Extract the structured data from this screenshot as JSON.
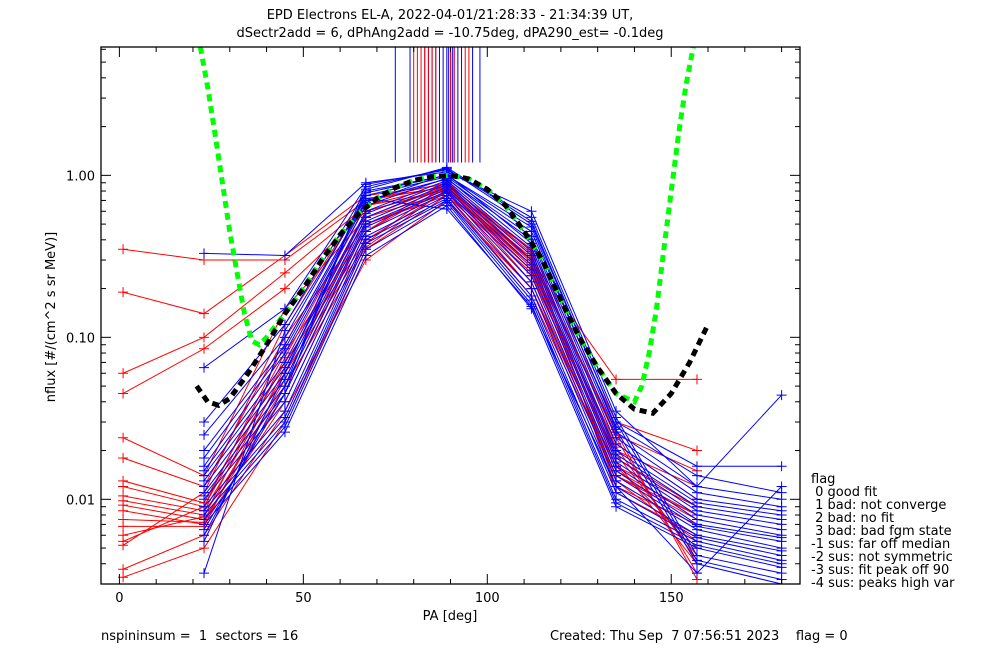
{
  "chart_data": {
    "type": "line",
    "title": [
      "EPD Electrons EL-A, 2022-04-01/21:28:33 - 21:34:39 UT,",
      "dSectr2add = 6, dPhAng2add = -10.75deg, dPA290_est=  -0.1deg"
    ],
    "xlabel": "PA [deg]",
    "ylabel": "nflux [#/(cm^2 s sr MeV)]",
    "xlim": [
      -5,
      185
    ],
    "ylim": [
      0.003,
      6.2
    ],
    "yscale": "log",
    "xticks": [
      0,
      50,
      100,
      150
    ],
    "xtick_labels": [
      "0",
      "50",
      "100",
      "150"
    ],
    "yticks": [
      0.01,
      0.1,
      1.0
    ],
    "ytick_labels": [
      "0.01",
      "0.10",
      "1.00"
    ],
    "grid": false,
    "pa_bins": [
      1,
      23,
      45,
      67,
      89,
      112,
      135,
      157,
      180
    ],
    "series": [
      {
        "name": "red-1",
        "color": "#ff0000",
        "values": [
          0.35,
          0.3,
          0.3,
          0.7,
          0.85,
          0.3,
          0.055,
          0.055,
          null
        ]
      },
      {
        "name": "red-2",
        "color": "#ff0000",
        "values": [
          0.19,
          0.14,
          0.32,
          0.75,
          0.88,
          0.35,
          0.03,
          0.02,
          null
        ]
      },
      {
        "name": "red-3",
        "color": "#ff0000",
        "values": [
          0.06,
          0.1,
          0.25,
          0.65,
          0.8,
          0.3,
          0.025,
          0.015,
          null
        ]
      },
      {
        "name": "red-4",
        "color": "#ff0000",
        "values": [
          0.045,
          0.085,
          0.2,
          0.6,
          0.82,
          0.28,
          0.02,
          0.012,
          null
        ]
      },
      {
        "name": "red-5",
        "color": "#ff0000",
        "values": [
          0.024,
          0.014,
          0.15,
          0.55,
          0.78,
          0.26,
          0.022,
          0.01,
          null
        ]
      },
      {
        "name": "red-6",
        "color": "#ff0000",
        "values": [
          0.018,
          0.012,
          0.1,
          0.5,
          0.75,
          0.25,
          0.018,
          0.009,
          null
        ]
      },
      {
        "name": "red-7",
        "color": "#ff0000",
        "values": [
          0.013,
          0.0095,
          0.08,
          0.45,
          0.85,
          0.22,
          0.015,
          0.008,
          null
        ]
      },
      {
        "name": "red-8",
        "color": "#ff0000",
        "values": [
          0.012,
          0.009,
          0.07,
          0.4,
          0.8,
          0.2,
          0.014,
          0.0075,
          null
        ]
      },
      {
        "name": "red-9",
        "color": "#ff0000",
        "values": [
          0.0105,
          0.0085,
          0.06,
          0.38,
          0.9,
          0.32,
          0.012,
          0.007,
          null
        ]
      },
      {
        "name": "red-10",
        "color": "#ff0000",
        "values": [
          0.0098,
          0.008,
          0.05,
          0.36,
          0.82,
          0.35,
          0.011,
          0.006,
          null
        ]
      },
      {
        "name": "red-11",
        "color": "#ff0000",
        "values": [
          0.0092,
          0.0075,
          0.045,
          0.5,
          0.78,
          0.28,
          0.013,
          0.0055,
          null
        ]
      },
      {
        "name": "red-12",
        "color": "#ff0000",
        "values": [
          0.0085,
          0.007,
          0.04,
          0.45,
          0.92,
          0.3,
          0.016,
          0.005,
          null
        ]
      },
      {
        "name": "red-13",
        "color": "#ff0000",
        "values": [
          0.0075,
          0.0072,
          0.055,
          0.55,
          0.86,
          0.24,
          0.019,
          0.0045,
          null
        ]
      },
      {
        "name": "red-14",
        "color": "#ff0000",
        "values": [
          0.0068,
          0.0068,
          0.065,
          0.6,
          0.83,
          0.27,
          0.021,
          0.0042,
          null
        ]
      },
      {
        "name": "red-15",
        "color": "#ff0000",
        "values": [
          0.006,
          0.0078,
          0.075,
          0.65,
          0.87,
          0.29,
          0.017,
          0.004,
          null
        ]
      },
      {
        "name": "red-16",
        "color": "#ff0000",
        "values": [
          0.0055,
          0.009,
          0.09,
          0.7,
          0.9,
          0.33,
          0.024,
          0.0035,
          null
        ]
      },
      {
        "name": "red-17",
        "color": "#ff0000",
        "values": [
          0.0052,
          0.011,
          0.12,
          0.72,
          0.84,
          0.31,
          0.026,
          0.0032,
          null
        ]
      },
      {
        "name": "red-18",
        "color": "#ff0000",
        "values": [
          0.0037,
          0.006,
          0.035,
          0.3,
          0.7,
          0.2,
          0.016,
          0.009,
          null
        ]
      },
      {
        "name": "red-19",
        "color": "#ff0000",
        "values": [
          0.0033,
          0.005,
          0.03,
          0.35,
          0.75,
          0.18,
          0.014,
          0.008,
          null
        ]
      },
      {
        "name": "blue-1",
        "color": "#0000ff",
        "values": [
          null,
          0.33,
          0.32,
          0.9,
          1.05,
          0.6,
          0.035,
          0.012,
          0.044
        ]
      },
      {
        "name": "blue-2",
        "color": "#0000ff",
        "values": [
          null,
          0.065,
          0.15,
          0.85,
          1.1,
          0.5,
          0.03,
          0.016,
          0.016
        ]
      },
      {
        "name": "blue-3",
        "color": "#0000ff",
        "values": [
          null,
          0.03,
          0.12,
          0.8,
          1.0,
          0.45,
          0.028,
          0.014,
          0.011
        ]
      },
      {
        "name": "blue-4",
        "color": "#0000ff",
        "values": [
          null,
          0.025,
          0.1,
          0.75,
          0.98,
          0.42,
          0.026,
          0.012,
          0.01
        ]
      },
      {
        "name": "blue-5",
        "color": "#0000ff",
        "values": [
          null,
          0.02,
          0.09,
          0.7,
          0.95,
          0.4,
          0.024,
          0.011,
          0.009
        ]
      },
      {
        "name": "blue-6",
        "color": "#0000ff",
        "values": [
          null,
          0.018,
          0.085,
          0.68,
          1.02,
          0.38,
          0.022,
          0.01,
          0.0085
        ]
      },
      {
        "name": "blue-7",
        "color": "#0000ff",
        "values": [
          null,
          0.016,
          0.08,
          0.65,
          0.96,
          0.36,
          0.02,
          0.0095,
          0.008
        ]
      },
      {
        "name": "blue-8",
        "color": "#0000ff",
        "values": [
          null,
          0.015,
          0.07,
          0.6,
          0.93,
          0.34,
          0.019,
          0.009,
          0.0075
        ]
      },
      {
        "name": "blue-9",
        "color": "#0000ff",
        "values": [
          null,
          0.014,
          0.065,
          0.58,
          0.9,
          0.32,
          0.018,
          0.0085,
          0.007
        ]
      },
      {
        "name": "blue-10",
        "color": "#0000ff",
        "values": [
          null,
          0.013,
          0.06,
          0.55,
          0.88,
          0.3,
          0.017,
          0.008,
          0.0065
        ]
      },
      {
        "name": "blue-11",
        "color": "#0000ff",
        "values": [
          null,
          0.012,
          0.055,
          0.52,
          0.85,
          0.28,
          0.016,
          0.0075,
          0.006
        ]
      },
      {
        "name": "blue-12",
        "color": "#0000ff",
        "values": [
          null,
          0.011,
          0.05,
          0.5,
          0.82,
          0.26,
          0.015,
          0.007,
          0.0058
        ]
      },
      {
        "name": "blue-13",
        "color": "#0000ff",
        "values": [
          null,
          0.0105,
          0.045,
          0.48,
          0.8,
          0.24,
          0.014,
          0.0068,
          0.0055
        ]
      },
      {
        "name": "blue-14",
        "color": "#0000ff",
        "values": [
          null,
          0.01,
          0.04,
          0.45,
          0.78,
          0.22,
          0.013,
          0.0065,
          0.005
        ]
      },
      {
        "name": "blue-15",
        "color": "#0000ff",
        "values": [
          null,
          0.009,
          0.035,
          0.42,
          0.75,
          0.2,
          0.012,
          0.006,
          0.0048
        ]
      },
      {
        "name": "blue-16",
        "color": "#0000ff",
        "values": [
          null,
          0.0085,
          0.032,
          0.4,
          0.72,
          0.18,
          0.011,
          0.0058,
          0.0045
        ]
      },
      {
        "name": "blue-17",
        "color": "#0000ff",
        "values": [
          null,
          0.008,
          0.03,
          0.38,
          0.7,
          0.17,
          0.01,
          0.0055,
          0.0042
        ]
      },
      {
        "name": "blue-18",
        "color": "#0000ff",
        "values": [
          null,
          0.0075,
          0.028,
          0.35,
          0.68,
          0.16,
          0.0095,
          0.0052,
          0.004
        ]
      },
      {
        "name": "blue-19",
        "color": "#0000ff",
        "values": [
          null,
          0.007,
          0.026,
          0.32,
          0.65,
          0.15,
          0.009,
          0.005,
          0.0038
        ]
      },
      {
        "name": "blue-20",
        "color": "#0000ff",
        "values": [
          null,
          0.0065,
          0.045,
          0.88,
          1.08,
          0.55,
          0.032,
          0.0045,
          0.0035
        ]
      },
      {
        "name": "blue-21",
        "color": "#0000ff",
        "values": [
          null,
          0.006,
          0.05,
          0.82,
          1.12,
          0.52,
          0.03,
          0.0042,
          0.0032
        ]
      },
      {
        "name": "blue-22",
        "color": "#0000ff",
        "values": [
          null,
          0.0055,
          0.06,
          0.78,
          1.0,
          0.48,
          0.027,
          0.004,
          0.003
        ]
      },
      {
        "name": "blue-23",
        "color": "#0000ff",
        "values": [
          null,
          0.0035,
          0.11,
          0.72,
          0.62,
          0.155,
          0.012,
          0.0035,
          0.012
        ]
      }
    ],
    "fit_curves": [
      {
        "name": "green-fit",
        "color": "#00ff00",
        "style": "dashed",
        "x": [
          22,
          24,
          26,
          28,
          30,
          32,
          34,
          36,
          38,
          40,
          45,
          50,
          55,
          60,
          65,
          70,
          75,
          80,
          85,
          90,
          95,
          100,
          105,
          110,
          115,
          120,
          125,
          130,
          135,
          140,
          142,
          144,
          146,
          148,
          150,
          152,
          154,
          156
        ],
        "y": [
          6.2,
          3.5,
          1.8,
          0.9,
          0.45,
          0.25,
          0.14,
          0.095,
          0.09,
          0.1,
          0.14,
          0.2,
          0.3,
          0.43,
          0.58,
          0.72,
          0.84,
          0.93,
          0.98,
          1.0,
          0.95,
          0.82,
          0.65,
          0.45,
          0.3,
          0.17,
          0.1,
          0.065,
          0.045,
          0.04,
          0.05,
          0.08,
          0.15,
          0.35,
          0.8,
          1.8,
          3.6,
          6.2
        ]
      },
      {
        "name": "black-fit",
        "color": "#000000",
        "style": "dashed",
        "x": [
          21,
          24,
          27,
          30,
          35,
          40,
          45,
          50,
          55,
          60,
          65,
          70,
          75,
          80,
          85,
          90,
          95,
          100,
          105,
          110,
          115,
          120,
          125,
          130,
          135,
          140,
          145,
          150,
          155,
          160
        ],
        "y": [
          0.05,
          0.04,
          0.038,
          0.042,
          0.06,
          0.09,
          0.14,
          0.2,
          0.3,
          0.43,
          0.58,
          0.72,
          0.84,
          0.93,
          0.98,
          1.0,
          0.95,
          0.82,
          0.65,
          0.45,
          0.3,
          0.17,
          0.1,
          0.065,
          0.045,
          0.036,
          0.034,
          0.045,
          0.07,
          0.12
        ]
      }
    ],
    "peak_markers": {
      "description": "vertical lines marking fitted peak PA per interval",
      "red_x": [
        80,
        81,
        82,
        83,
        84,
        85,
        86,
        90,
        91,
        94,
        95
      ],
      "blue_x": [
        75,
        79,
        83,
        84,
        85,
        86,
        87,
        88,
        89,
        89.5,
        90,
        90.5,
        91,
        92,
        93,
        96,
        98
      ],
      "y_range": [
        1.2,
        6.2
      ]
    },
    "legend": {
      "title": "flag",
      "entries": [
        " 0 good fit",
        " 1 bad: not converge",
        " 2 bad: no fit",
        " 3 bad: bad fgm state",
        "-1 sus: far off median",
        "-2 sus: not symmetric",
        "-3 sus: fit peak off 90",
        "-4 sus: peaks high var"
      ],
      "placement": "right"
    }
  },
  "footer": {
    "left": "nspininsum =  1  sectors = 16",
    "right": "Created: Thu Sep  7 07:56:51 2023    flag = 0"
  }
}
